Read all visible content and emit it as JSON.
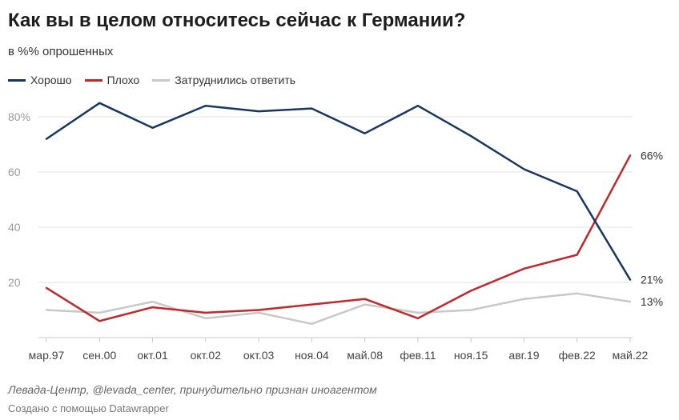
{
  "header": {
    "title": "Как вы в целом относитесь сейчас к Германии?",
    "subtitle": "в %% опрошенных"
  },
  "legend": [
    {
      "label": "Хорошо",
      "color": "#17375e"
    },
    {
      "label": "Плохо",
      "color": "#c0282c"
    },
    {
      "label": "Затруднились ответить",
      "color": "#c8c8c8"
    }
  ],
  "footer": {
    "source": "Левада-Центр, @levada_center, принудительно признан иноагентом",
    "credit": "Создано с помощью Datawrapper"
  },
  "chart_data": {
    "type": "line",
    "categories": [
      "мар.97",
      "сен.00",
      "окт.01",
      "окт.02",
      "окт.03",
      "ноя.04",
      "май.08",
      "фев.11",
      "ноя.15",
      "авг.19",
      "фев.22",
      "май.22"
    ],
    "series": [
      {
        "name": "Хорошо",
        "color": "#17375e",
        "values": [
          72,
          85,
          76,
          84,
          82,
          83,
          74,
          84,
          73,
          61,
          53,
          21
        ],
        "end_label": "21%"
      },
      {
        "name": "Плохо",
        "color": "#c0282c",
        "values": [
          18,
          6,
          11,
          9,
          10,
          12,
          14,
          7,
          17,
          25,
          30,
          66
        ],
        "end_label": "66%"
      },
      {
        "name": "Затруднились ответить",
        "color": "#c8c8c8",
        "values": [
          10,
          9,
          13,
          7,
          9,
          5,
          12,
          9,
          10,
          14,
          16,
          13
        ],
        "end_label": "13%"
      }
    ],
    "y_ticks": [
      "80%",
      "60",
      "40",
      "20"
    ],
    "y_tick_values": [
      80,
      60,
      40,
      20
    ],
    "ylim": [
      0,
      95
    ],
    "grid": true,
    "legend_position": "top-left"
  }
}
